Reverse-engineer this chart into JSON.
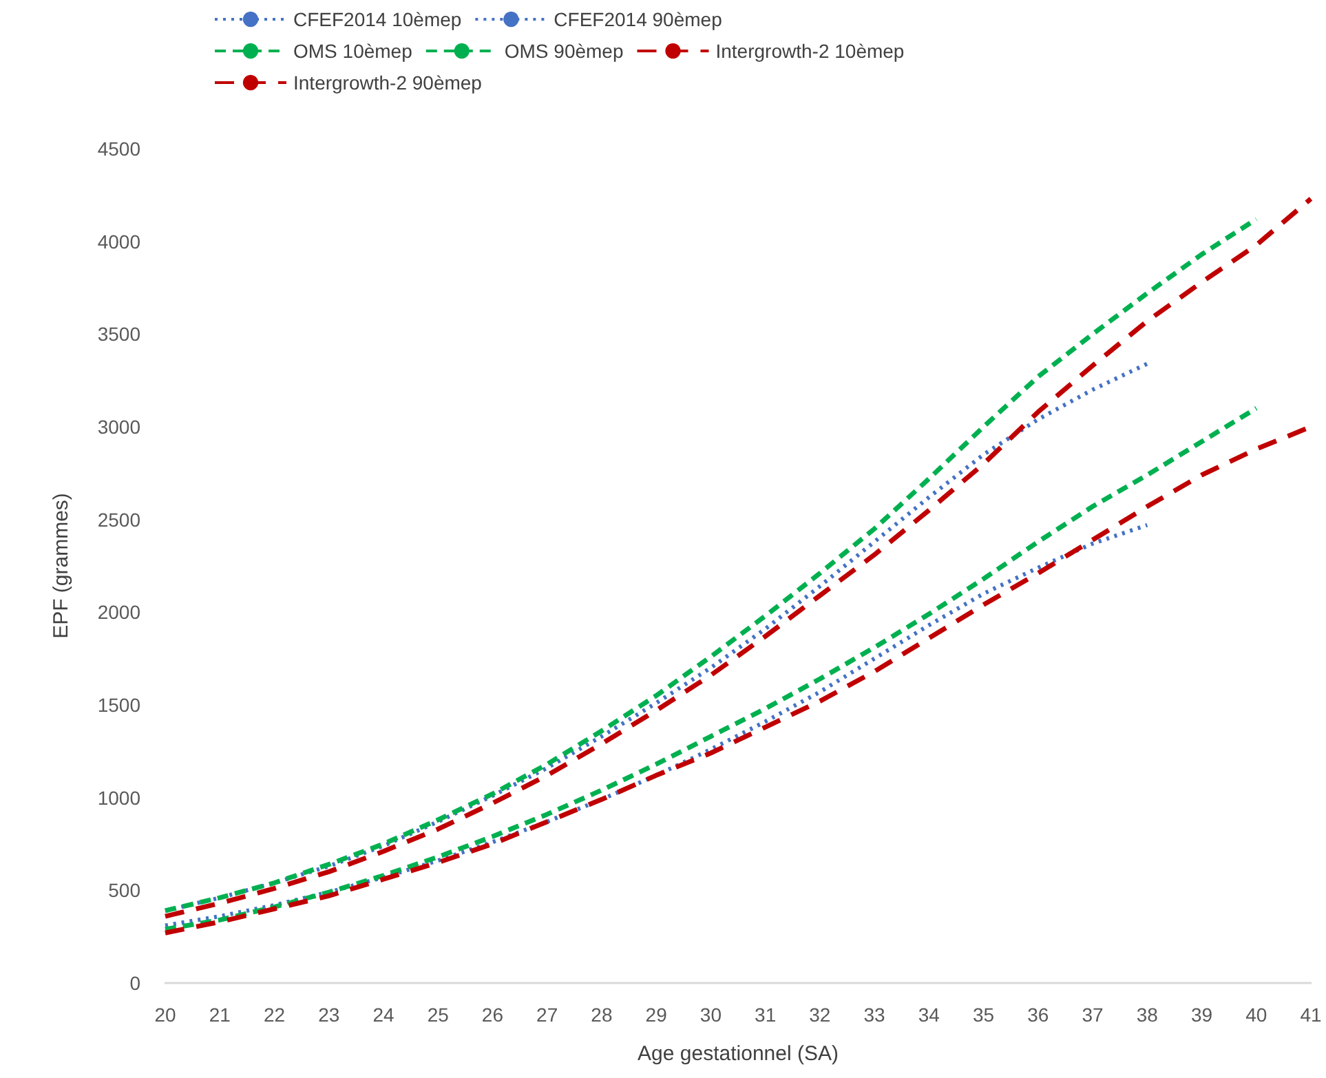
{
  "chart_data": {
    "type": "line",
    "xlabel": "Age gestationnel (SA)",
    "ylabel": "EPF (grammes)",
    "categories": [
      "20",
      "21",
      "22",
      "23",
      "24",
      "25",
      "26",
      "27",
      "28",
      "29",
      "30",
      "31",
      "32",
      "33",
      "34",
      "35",
      "36",
      "37",
      "38",
      "39",
      "40",
      "41"
    ],
    "series": [
      {
        "name": "CFEF2014 10èmep",
        "color": "#4472c4",
        "line_style": "dotted",
        "values": [
          310,
          360,
          420,
          490,
          570,
          660,
          760,
          870,
          990,
          1120,
          1260,
          1410,
          1570,
          1750,
          1930,
          2100,
          2240,
          2370,
          2470,
          null,
          null,
          null
        ]
      },
      {
        "name": "CFEF2014 90èmep",
        "color": "#4472c4",
        "line_style": "dotted",
        "values": [
          390,
          460,
          540,
          630,
          740,
          870,
          1010,
          1160,
          1330,
          1510,
          1700,
          1910,
          2140,
          2380,
          2620,
          2850,
          3040,
          3200,
          3340,
          null,
          null,
          null
        ]
      },
      {
        "name": "OMS 10èmep",
        "color": "#00b050",
        "line_style": "dashed",
        "values": [
          290,
          340,
          410,
          490,
          580,
          680,
          790,
          910,
          1040,
          1180,
          1330,
          1480,
          1640,
          1810,
          1990,
          2180,
          2380,
          2570,
          2740,
          2920,
          3100,
          null
        ]
      },
      {
        "name": "OMS 90èmep",
        "color": "#00b050",
        "line_style": "dashed",
        "values": [
          390,
          460,
          540,
          640,
          750,
          880,
          1020,
          1180,
          1360,
          1550,
          1760,
          1980,
          2210,
          2450,
          2720,
          3000,
          3270,
          3500,
          3720,
          3930,
          4120,
          null
        ]
      },
      {
        "name": "Intergrowth-2 10èmep",
        "color": "#c00000",
        "line_style": "dashed",
        "values": [
          270,
          330,
          400,
          470,
          560,
          650,
          750,
          870,
          990,
          1120,
          1240,
          1380,
          1520,
          1680,
          1860,
          2040,
          2210,
          2390,
          2570,
          2740,
          2880,
          3000
        ]
      },
      {
        "name": "Intergrowth-2 90èmep",
        "color": "#c00000",
        "line_style": "dashed",
        "values": [
          360,
          430,
          510,
          600,
          710,
          830,
          970,
          1120,
          1290,
          1470,
          1660,
          1870,
          2090,
          2310,
          2550,
          2800,
          3080,
          3330,
          3570,
          3780,
          3980,
          4230
        ]
      }
    ],
    "ylim": [
      0,
      4500
    ],
    "yticks": [
      0,
      500,
      1000,
      1500,
      2000,
      2500,
      3000,
      3500,
      4000,
      4500
    ],
    "grid": false,
    "legend": "top",
    "marker": "none"
  }
}
